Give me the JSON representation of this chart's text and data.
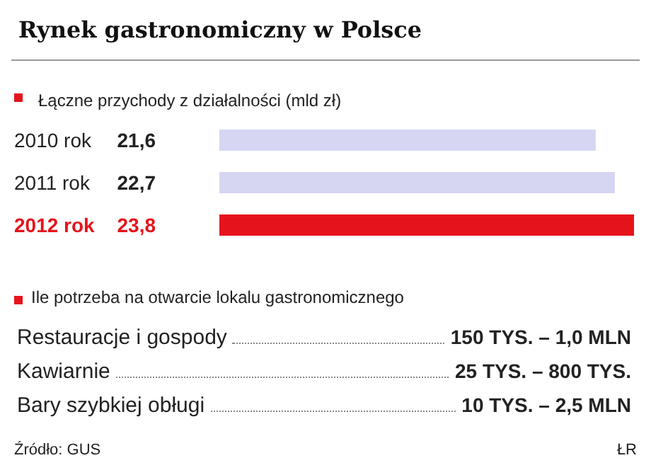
{
  "chart_data": [
    {
      "type": "bar",
      "orientation": "horizontal",
      "title": "Rynek gastronomiczny w Polsce",
      "subtitle": "Łączne przychody z działalności (mld zł)",
      "categories": [
        "2010 rok",
        "2011 rok",
        "2012 rok"
      ],
      "values": [
        21.6,
        22.7,
        23.8
      ],
      "colors": [
        "#d6d6f2",
        "#d6d6f2",
        "#e5141b"
      ],
      "value_labels": [
        "21,6",
        "22,7",
        "23,8"
      ]
    },
    {
      "type": "other",
      "title": "Ile potrzeba na otwarcie lokalu gastronomicznego",
      "categories": [
        "Restauracje i gospody",
        "Kawiarnie",
        "Bary szybkiej obługi"
      ],
      "value_labels": [
        "150 TYS. – 1,0 MLN",
        "25 TYS. – 800 TYS.",
        "10 TYS. – 2,5 MLN"
      ],
      "annotations": [
        "Źródło: GUS",
        "ŁR"
      ]
    }
  ]
}
